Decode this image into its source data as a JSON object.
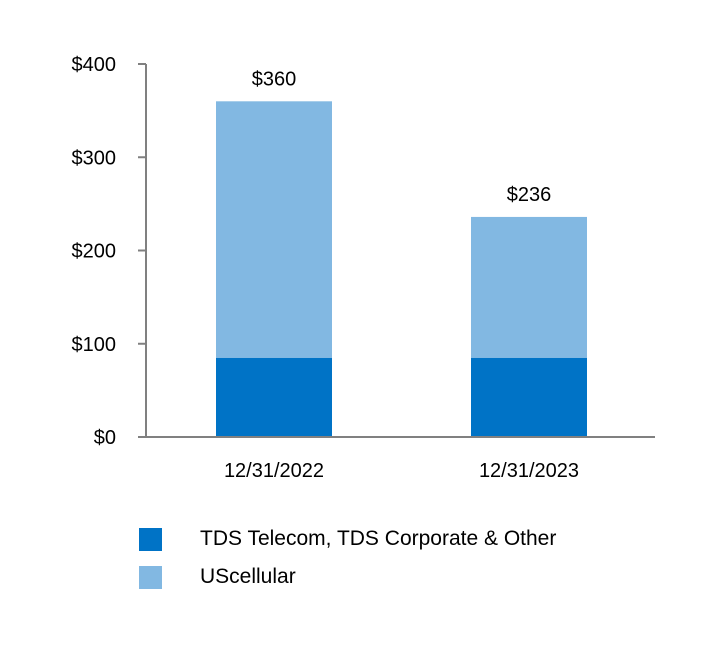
{
  "chart_data": {
    "type": "bar",
    "stacked": true,
    "categories": [
      "12/31/2022",
      "12/31/2023"
    ],
    "series": [
      {
        "name": "TDS Telecom, TDS Corporate & Other",
        "values": [
          85,
          85
        ],
        "color": "#0073C6"
      },
      {
        "name": "UScellular",
        "values": [
          275,
          151
        ],
        "color": "#82B8E2"
      }
    ],
    "totals": [
      "$360",
      "$236"
    ],
    "ylim": [
      0,
      400
    ],
    "yticks": [
      0,
      100,
      200,
      300,
      400
    ],
    "ytick_labels": [
      "$0",
      "$100",
      "$200",
      "$300",
      "$400"
    ],
    "legend_position": "bottom",
    "grid": false
  }
}
